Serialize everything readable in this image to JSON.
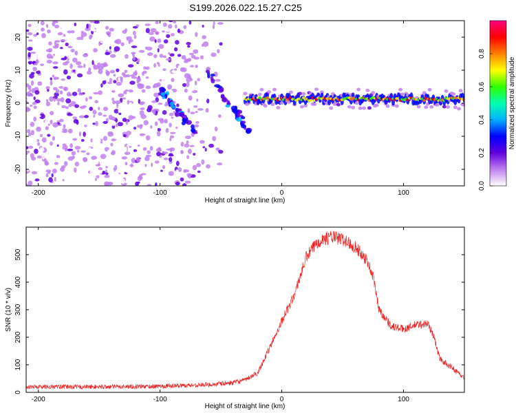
{
  "figure_title": "S199.2026.022.15.27.C25",
  "chart_data": [
    {
      "type": "heatmap",
      "name": "spectrogram",
      "xlabel": "Height of straight line (km)",
      "ylabel": "Frequency (Hz)",
      "xlim": [
        -210,
        150
      ],
      "ylim": [
        -25,
        25
      ],
      "x_ticks": [
        -200,
        -100,
        0,
        100
      ],
      "y_ticks": [
        -20,
        -10,
        0,
        10,
        20
      ],
      "colorbar": {
        "label": "Normalized spectral amplitude",
        "range": [
          0.0,
          1.0
        ],
        "ticks": [
          "0.0",
          "0.2",
          "0.4",
          "0.6",
          "0.8"
        ],
        "tick_values": [
          0.0,
          0.2,
          0.4,
          0.6,
          0.8
        ],
        "colormap": [
          "#ffffff",
          "#c080f0",
          "#6000e0",
          "#0000ff",
          "#00b0ff",
          "#00ffb0",
          "#30ff00",
          "#ffff00",
          "#ff8000",
          "#ff0000",
          "#ff0080"
        ]
      },
      "noise_region": {
        "x_range": [
          -210,
          -50
        ],
        "freq_range": [
          -25,
          25
        ],
        "amplitude_range": [
          0.02,
          0.18
        ]
      },
      "features": [
        {
          "name": "steady-line",
          "x_range": [
            -30,
            150
          ],
          "freq_range": [
            -1.5,
            4
          ],
          "amplitude_range": [
            0.55,
            0.95
          ]
        },
        {
          "name": "descending-streak-1",
          "from": [
            -100,
            4
          ],
          "to": [
            -70,
            -9
          ],
          "amplitude_range": [
            0.15,
            0.4
          ]
        },
        {
          "name": "descending-streak-2",
          "from": [
            -60,
            9
          ],
          "to": [
            -28,
            -8
          ],
          "amplitude_range": [
            0.15,
            0.4
          ]
        }
      ]
    },
    {
      "type": "line",
      "name": "snr",
      "xlabel": "Height of straight line (km)",
      "ylabel": "SNR (10 * v/v)",
      "xlim": [
        -210,
        150
      ],
      "ylim": [
        0,
        600
      ],
      "x_ticks": [
        -200,
        -100,
        0,
        100
      ],
      "y_ticks": [
        0,
        100,
        200,
        300,
        400,
        500
      ],
      "series": [
        {
          "name": "SNR",
          "color": "#ee2020",
          "envelope": {
            "x": [
              -210,
              -150,
              -100,
              -60,
              -40,
              -30,
              -20,
              -10,
              0,
              10,
              20,
              30,
              40,
              50,
              60,
              70,
              75,
              80,
              90,
              100,
              110,
              120,
              125,
              130,
              140,
              150
            ],
            "y": [
              20,
              20,
              22,
              28,
              35,
              45,
              70,
              160,
              260,
              350,
              490,
              550,
              565,
              555,
              530,
              480,
              420,
              300,
              240,
              230,
              245,
              250,
              200,
              120,
              90,
              50
            ],
            "noise_amplitude": 25
          }
        }
      ]
    }
  ]
}
